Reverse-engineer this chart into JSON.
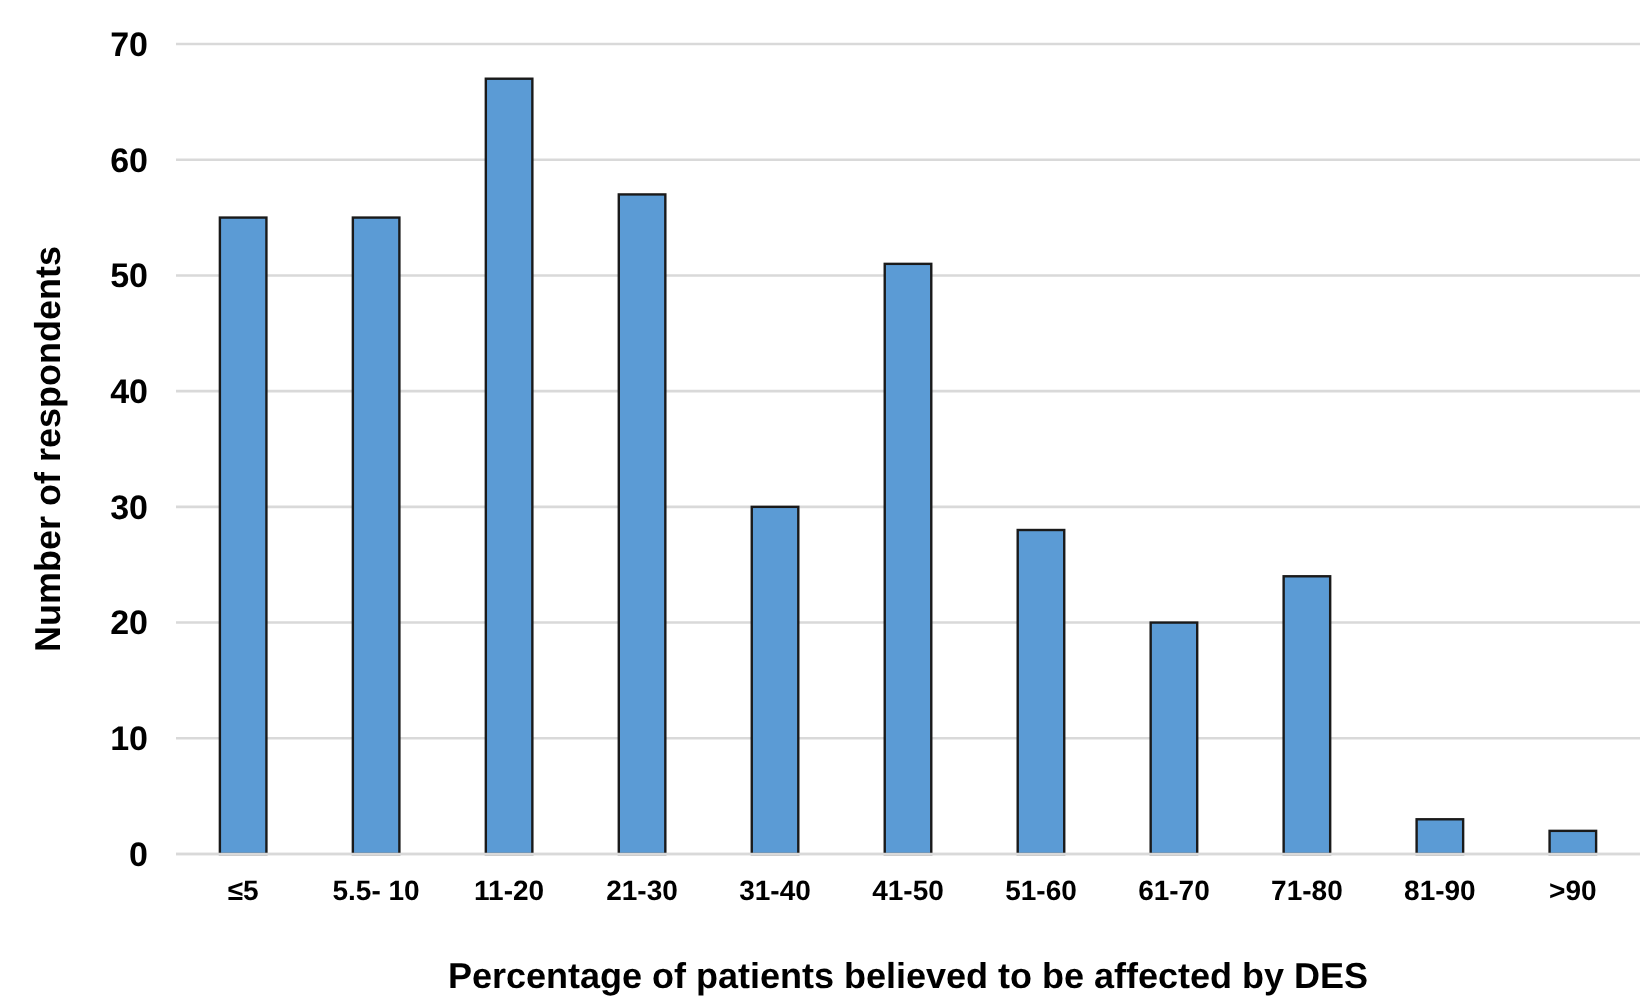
{
  "chart_data": {
    "type": "bar",
    "xlabel": "Percentage of patients believed to be affected by DES",
    "ylabel": "Number of respondents",
    "categories": [
      "≤5",
      "5.5- 10",
      "11-20",
      "21-30",
      "31-40",
      "41-50",
      "51-60",
      "61-70",
      "71-80",
      "81-90",
      ">90"
    ],
    "values": [
      55,
      55,
      67,
      57,
      30,
      51,
      28,
      20,
      24,
      3,
      2
    ],
    "color": "#5b9bd5",
    "ylim": [
      0,
      70
    ],
    "yticks": [
      0,
      10,
      20,
      30,
      40,
      50,
      60,
      70
    ],
    "grid": "y"
  }
}
